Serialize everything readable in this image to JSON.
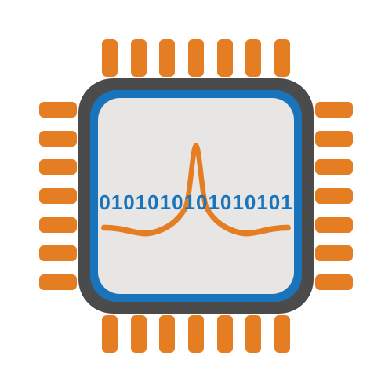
{
  "chip": {
    "type": "infographic",
    "background_color": "#ffffff",
    "body_color": "#4b4b4b",
    "border_ring_color": "#1974bc",
    "inner_face_color": "#e7e6e4",
    "pin_color": "#e57e22",
    "pin_count_per_side": 7,
    "body_corner_radius": 44,
    "inner_corner_radius": 34,
    "binary_text": "0101010101010101",
    "binary_color": "#1974bc",
    "binary_fontsize": 26,
    "binary_fontweight": "bold",
    "wave_color": "#e57e22",
    "wave_stroke_width": 7
  }
}
